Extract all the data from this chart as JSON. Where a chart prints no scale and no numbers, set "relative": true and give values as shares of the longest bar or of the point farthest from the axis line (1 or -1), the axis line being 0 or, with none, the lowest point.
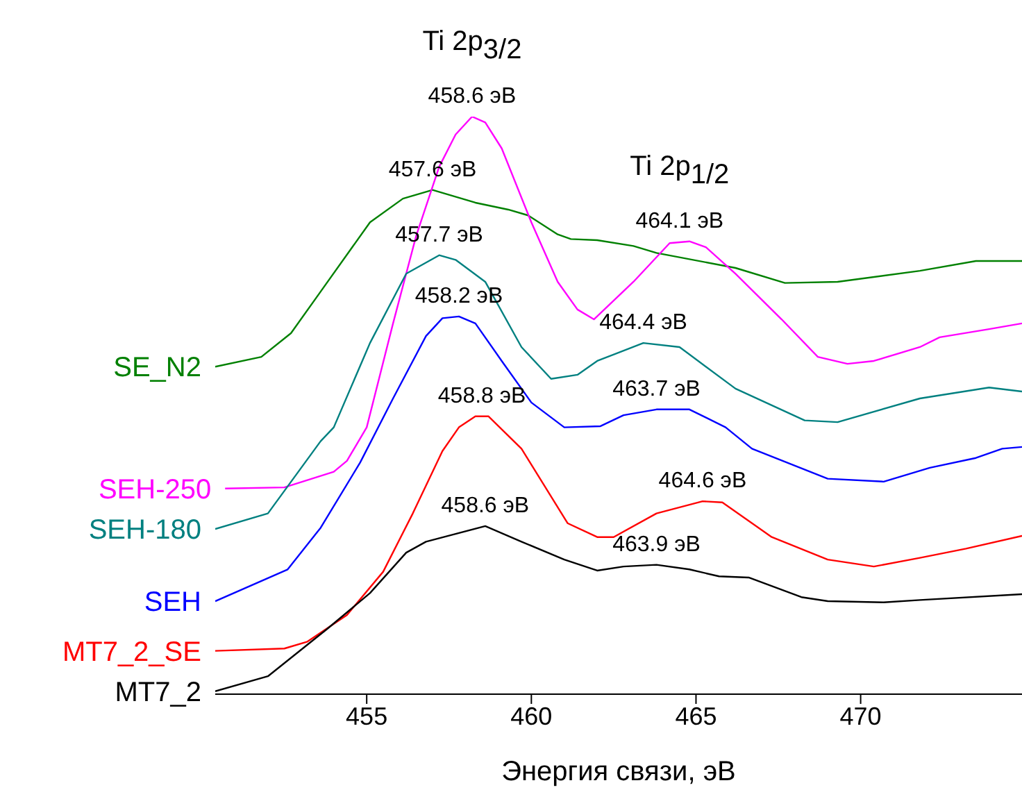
{
  "chart_data": {
    "type": "line",
    "relative": true,
    "xlabel": "Энергия связи, эВ",
    "xlim": [
      450.4,
      474.9
    ],
    "xticks": [
      455,
      460,
      465,
      470
    ],
    "grid": false,
    "legend": false,
    "marker": "none",
    "line_style": "solid",
    "series": [
      {
        "name": "SE_N2",
        "color": "#008000",
        "x": [
          450.4,
          451.8,
          452.7,
          453.6,
          455.1,
          456.1,
          457.0,
          458.3,
          459.3,
          459.9,
          460.8,
          461.2,
          462.0,
          463.1,
          463.8,
          466.2,
          467.7,
          469.3,
          471.8,
          473.5,
          474.9
        ],
        "values": [
          0.567,
          0.584,
          0.625,
          0.697,
          0.817,
          0.858,
          0.873,
          0.851,
          0.839,
          0.829,
          0.796,
          0.788,
          0.786,
          0.776,
          0.764,
          0.738,
          0.712,
          0.714,
          0.733,
          0.75,
          0.75
        ]
      },
      {
        "name": "SEH-250",
        "color": "#ff00ff",
        "x": [
          450.7,
          452.5,
          454.0,
          454.4,
          455.0,
          455.8,
          456.5,
          457.2,
          457.7,
          458.2,
          458.6,
          459.1,
          460.0,
          460.8,
          461.4,
          461.9,
          463.1,
          464.2,
          464.8,
          465.3,
          466.2,
          467.6,
          468.7,
          469.6,
          470.4,
          471.8,
          472.4,
          473.9,
          474.9
        ],
        "values": [
          0.356,
          0.358,
          0.385,
          0.404,
          0.462,
          0.642,
          0.793,
          0.913,
          0.969,
          1,
          0.99,
          0.945,
          0.817,
          0.714,
          0.666,
          0.649,
          0.714,
          0.781,
          0.784,
          0.774,
          0.728,
          0.649,
          0.584,
          0.572,
          0.577,
          0.601,
          0.618,
          0.632,
          0.642
        ]
      },
      {
        "name": "SEH-180",
        "color": "#008080",
        "x": [
          450.4,
          452.0,
          453.6,
          454.0,
          455.1,
          456.2,
          457.2,
          457.7,
          458.6,
          459.7,
          460.6,
          461.4,
          462.0,
          463.4,
          464.5,
          466.2,
          468.3,
          469.3,
          471.8,
          473.9,
          474.9
        ],
        "values": [
          0.286,
          0.313,
          0.438,
          0.462,
          0.608,
          0.728,
          0.76,
          0.752,
          0.714,
          0.601,
          0.546,
          0.553,
          0.577,
          0.608,
          0.601,
          0.529,
          0.474,
          0.471,
          0.512,
          0.531,
          0.524
        ]
      },
      {
        "name": "SEH",
        "color": "#0000ff",
        "x": [
          450.4,
          452.6,
          453.6,
          454.8,
          455.8,
          456.8,
          457.3,
          457.8,
          458.3,
          459.1,
          460.0,
          461.0,
          462.1,
          462.8,
          463.8,
          464.8,
          465.9,
          466.7,
          469.0,
          470.7,
          472.1,
          473.5,
          474.3,
          474.9
        ],
        "values": [
          0.161,
          0.216,
          0.288,
          0.401,
          0.512,
          0.62,
          0.651,
          0.654,
          0.642,
          0.577,
          0.505,
          0.462,
          0.464,
          0.483,
          0.493,
          0.493,
          0.462,
          0.425,
          0.373,
          0.368,
          0.392,
          0.409,
          0.425,
          0.428
        ]
      },
      {
        "name": "MT7_2_SE",
        "color": "#ff0000",
        "x": [
          450.4,
          452.5,
          453.2,
          454.4,
          455.5,
          456.4,
          457.3,
          457.8,
          458.3,
          458.7,
          459.7,
          461.1,
          462.0,
          462.5,
          463.8,
          465.2,
          465.8,
          467.3,
          469.0,
          470.4,
          471.8,
          473.2,
          474.9
        ],
        "values": [
          0.075,
          0.079,
          0.091,
          0.137,
          0.212,
          0.313,
          0.421,
          0.462,
          0.481,
          0.481,
          0.425,
          0.296,
          0.272,
          0.272,
          0.313,
          0.334,
          0.332,
          0.272,
          0.233,
          0.221,
          0.236,
          0.252,
          0.274
        ]
      },
      {
        "name": "MT7_2",
        "color": "#000000",
        "x": [
          450.4,
          452.0,
          453.8,
          455.1,
          456.2,
          456.8,
          457.6,
          458.6,
          459.7,
          461.0,
          462.0,
          462.8,
          463.8,
          464.8,
          465.7,
          466.6,
          468.2,
          469.0,
          470.7,
          471.8,
          474.9
        ],
        "values": [
          0.005,
          0.031,
          0.113,
          0.175,
          0.245,
          0.264,
          0.276,
          0.291,
          0.264,
          0.233,
          0.214,
          0.221,
          0.224,
          0.216,
          0.204,
          0.202,
          0.168,
          0.161,
          0.159,
          0.163,
          0.173
        ]
      }
    ],
    "annotations": [
      {
        "text": "458.6 эВ",
        "x": 458.2,
        "y": 1
      },
      {
        "text": "Ti 2p$_{3/2}$",
        "x": 458.2,
        "y": 1
      },
      {
        "text": "457.6 эВ",
        "x": 457.0,
        "y": 0.873
      },
      {
        "text": "457.7 эВ",
        "x": 457.2,
        "y": 0.76
      },
      {
        "text": "458.2 эВ",
        "x": 457.8,
        "y": 0.654
      },
      {
        "text": "458.8 эВ",
        "x": 458.5,
        "y": 0.481
      },
      {
        "text": "458.6 эВ",
        "x": 458.6,
        "y": 0.291
      },
      {
        "text": "464.1 эВ",
        "x": 464.5,
        "y": 0.784
      },
      {
        "text": "Ti 2p$_{1/2}$",
        "x": 464.5,
        "y": 0.784
      },
      {
        "text": "464.4 эВ",
        "x": 463.4,
        "y": 0.608
      },
      {
        "text": "463.7 эВ",
        "x": 463.8,
        "y": 0.493
      },
      {
        "text": "464.6 эВ",
        "x": 465.2,
        "y": 0.334
      },
      {
        "text": "463.9 эВ",
        "x": 463.8,
        "y": 0.224
      }
    ]
  }
}
